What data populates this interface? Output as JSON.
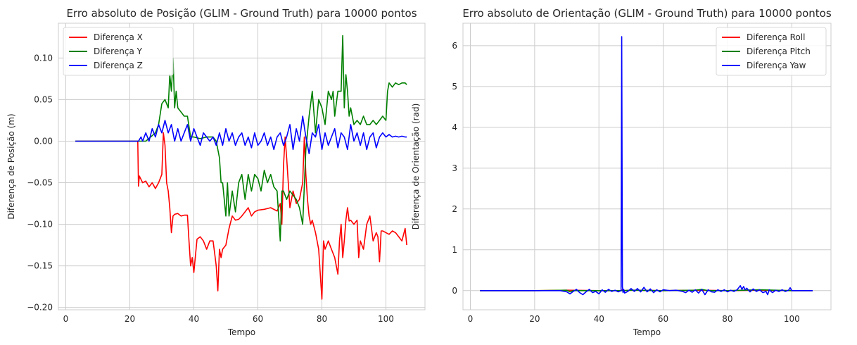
{
  "chart_data": [
    {
      "type": "line",
      "title": "Erro absoluto de Posição (GLIM - Ground Truth) para 10000 pontos",
      "xlabel": "Tempo",
      "ylabel": "Diferença de Posição (m)",
      "xlim": [
        -2.3,
        112.2
      ],
      "ylim": [
        -0.2028,
        0.1418
      ],
      "xticks": [
        0,
        20,
        40,
        60,
        80,
        100
      ],
      "xtick_labels": [
        "0",
        "20",
        "40",
        "60",
        "80",
        "100"
      ],
      "yticks": [
        -0.2,
        -0.15,
        -0.1,
        -0.05,
        0.0,
        0.05,
        0.1
      ],
      "ytick_labels": [
        "−0.20",
        "−0.15",
        "−0.10",
        "−0.05",
        "0.00",
        "0.05",
        "0.10"
      ],
      "grid": true,
      "legend_position": "top-left",
      "series": [
        {
          "name": "Diferença X",
          "color": "#ff0000",
          "x": [
            3,
            10,
            22.5,
            22.7,
            23,
            24,
            25,
            26,
            27,
            28,
            29,
            30,
            30.5,
            31,
            31.5,
            32,
            32.5,
            33,
            33.5,
            34,
            35,
            36,
            37,
            38,
            38.5,
            39,
            39.5,
            40,
            41,
            42,
            43,
            44,
            45,
            46,
            46.5,
            47,
            47.5,
            48,
            48.5,
            49,
            50,
            51,
            52,
            53,
            54,
            55,
            56,
            57,
            58,
            59,
            60,
            62,
            64,
            66,
            67,
            67.5,
            68,
            68.5,
            69,
            70,
            71,
            72,
            73,
            73.5,
            74,
            74.5,
            75,
            75.5,
            76,
            76.5,
            77,
            78,
            79,
            79.5,
            80,
            80.5,
            81,
            82,
            83,
            84,
            85,
            85.5,
            86,
            86.5,
            87,
            87.5,
            88,
            88.5,
            89,
            90,
            91,
            91.5,
            92,
            93,
            94,
            95,
            96,
            97,
            97.5,
            98,
            98.5,
            99,
            100,
            101,
            102,
            103,
            104,
            105,
            106,
            106.5
          ],
          "y": [
            0,
            0,
            0,
            -0.054,
            -0.042,
            -0.05,
            -0.048,
            -0.055,
            -0.05,
            -0.057,
            -0.05,
            -0.04,
            0.01,
            -0.005,
            -0.05,
            -0.06,
            -0.08,
            -0.11,
            -0.09,
            -0.088,
            -0.087,
            -0.09,
            -0.089,
            -0.089,
            -0.12,
            -0.15,
            -0.14,
            -0.158,
            -0.118,
            -0.115,
            -0.12,
            -0.13,
            -0.12,
            -0.12,
            -0.135,
            -0.15,
            -0.18,
            -0.13,
            -0.14,
            -0.13,
            -0.125,
            -0.105,
            -0.09,
            -0.095,
            -0.094,
            -0.09,
            -0.085,
            -0.08,
            -0.09,
            -0.085,
            -0.083,
            -0.082,
            -0.08,
            -0.084,
            -0.075,
            -0.1,
            -0.03,
            0.005,
            -0.02,
            -0.08,
            -0.06,
            -0.075,
            -0.07,
            -0.06,
            -0.05,
            0.005,
            -0.04,
            -0.07,
            -0.09,
            -0.1,
            -0.095,
            -0.11,
            -0.13,
            -0.16,
            -0.19,
            -0.12,
            -0.13,
            -0.12,
            -0.13,
            -0.14,
            -0.16,
            -0.12,
            -0.1,
            -0.14,
            -0.12,
            -0.095,
            -0.08,
            -0.096,
            -0.095,
            -0.1,
            -0.095,
            -0.14,
            -0.12,
            -0.13,
            -0.1,
            -0.09,
            -0.12,
            -0.11,
            -0.115,
            -0.145,
            -0.108,
            -0.108,
            -0.11,
            -0.112,
            -0.108,
            -0.11,
            -0.115,
            -0.12,
            -0.105,
            -0.125
          ]
        },
        {
          "name": "Diferença Y",
          "color": "#008000",
          "x": [
            3,
            10,
            20,
            25,
            28,
            29,
            30,
            31,
            32,
            32.5,
            33,
            33.5,
            34,
            34.5,
            35,
            36,
            37,
            38,
            39,
            40,
            42,
            44,
            46,
            47,
            48,
            48.5,
            49,
            50,
            50.5,
            51,
            52,
            53,
            54,
            55,
            56,
            57,
            58,
            59,
            60,
            61,
            62,
            63,
            64,
            65,
            66,
            67,
            67.5,
            68,
            69,
            70,
            71,
            72,
            73,
            74,
            75,
            76,
            77,
            78,
            79,
            80,
            81,
            82,
            83,
            83.5,
            84,
            85,
            86,
            86.5,
            87,
            87.5,
            88,
            88.5,
            89,
            90,
            91,
            92,
            93,
            94,
            95,
            96,
            97,
            98,
            99,
            100,
            100.5,
            101,
            102,
            103,
            104,
            105,
            106,
            106.5
          ],
          "y": [
            0,
            0,
            0,
            0,
            0.01,
            0.02,
            0.045,
            0.05,
            0.04,
            0.08,
            0.06,
            0.1,
            0.04,
            0.06,
            0.04,
            0.035,
            0.03,
            0.03,
            0.005,
            0.005,
            0.003,
            0.005,
            0.005,
            0,
            -0.02,
            -0.05,
            -0.05,
            -0.09,
            -0.05,
            -0.09,
            -0.06,
            -0.085,
            -0.05,
            -0.04,
            -0.07,
            -0.04,
            -0.06,
            -0.04,
            -0.045,
            -0.06,
            -0.035,
            -0.05,
            -0.04,
            -0.055,
            -0.06,
            -0.12,
            -0.06,
            -0.06,
            -0.07,
            -0.06,
            -0.065,
            -0.07,
            -0.08,
            -0.1,
            -0.01,
            0.03,
            0.06,
            0.01,
            0.05,
            0.04,
            0.02,
            0.06,
            0.05,
            0.06,
            0.03,
            0.06,
            0.06,
            0.127,
            0.04,
            0.08,
            0.06,
            0.03,
            0.04,
            0.02,
            0.025,
            0.02,
            0.03,
            0.02,
            0.02,
            0.025,
            0.02,
            0.025,
            0.03,
            0.025,
            0.06,
            0.07,
            0.065,
            0.07,
            0.068,
            0.07,
            0.07,
            0.068
          ]
        },
        {
          "name": "Diferença Z",
          "color": "#0000ff",
          "x": [
            3,
            10,
            20,
            22.7,
            23.5,
            24,
            25,
            26,
            27,
            28,
            29,
            30,
            31,
            32,
            33,
            34,
            35,
            36,
            37,
            38,
            39,
            40,
            41,
            42,
            43,
            44,
            45,
            46,
            47,
            48,
            49,
            50,
            51,
            52,
            53,
            54,
            55,
            56,
            57,
            58,
            59,
            60,
            61,
            62,
            63,
            64,
            65,
            66,
            67,
            68,
            69,
            70,
            71,
            72,
            73,
            74,
            75,
            76,
            77,
            78,
            79,
            80,
            81,
            82,
            83,
            84,
            85,
            86,
            87,
            88,
            89,
            90,
            91,
            92,
            93,
            94,
            95,
            96,
            97,
            98,
            99,
            100,
            101,
            102,
            103,
            104,
            105,
            106,
            106.5
          ],
          "y": [
            0,
            0,
            0,
            0,
            0.005,
            0,
            0.01,
            0,
            0.015,
            0.005,
            0.02,
            0.01,
            0.025,
            0.01,
            0.02,
            0,
            0.015,
            0,
            0.01,
            0.02,
            0,
            0.015,
            0.005,
            -0.005,
            0.01,
            0.005,
            0,
            0.005,
            -0.005,
            0.01,
            -0.005,
            0.015,
            0,
            0.01,
            -0.005,
            0.005,
            0.01,
            -0.005,
            0.005,
            -0.008,
            0.01,
            -0.005,
            0,
            0.01,
            -0.005,
            0.005,
            -0.01,
            0.005,
            0.01,
            -0.005,
            0.005,
            0.02,
            -0.01,
            0.015,
            0,
            0.03,
            0.005,
            -0.015,
            0.01,
            0.005,
            0.02,
            -0.01,
            0.01,
            -0.005,
            0.005,
            0.015,
            -0.008,
            0.01,
            0.005,
            -0.01,
            0.02,
            0,
            0.01,
            -0.005,
            0.01,
            -0.01,
            0.005,
            0.01,
            -0.008,
            0.005,
            0.01,
            0.005,
            0.008,
            0.005,
            0.006,
            0.005,
            0.006,
            0.005,
            0.005
          ]
        }
      ]
    },
    {
      "type": "line",
      "title": "Erro absoluto de Orientação (GLIM - Ground Truth) para 10000 pontos",
      "xlabel": "Tempo",
      "ylabel": "Diferença de Orientação (rad)",
      "xlim": [
        -2.3,
        112.2
      ],
      "ylim": [
        -0.47,
        6.55
      ],
      "xticks": [
        0,
        20,
        40,
        60,
        80,
        100
      ],
      "xtick_labels": [
        "0",
        "20",
        "40",
        "60",
        "80",
        "100"
      ],
      "yticks": [
        0,
        1,
        2,
        3,
        4,
        5,
        6
      ],
      "ytick_labels": [
        "0",
        "1",
        "2",
        "3",
        "4",
        "5",
        "6"
      ],
      "grid": true,
      "legend_position": "top-right",
      "series": [
        {
          "name": "Diferença Roll",
          "color": "#ff0000",
          "x": [
            3,
            20,
            30,
            40,
            47,
            47.3,
            47.6,
            50,
            60,
            70,
            80,
            90,
            100,
            106.5
          ],
          "y": [
            0,
            0,
            0.01,
            0,
            0,
            0.02,
            0,
            0.01,
            0,
            0.01,
            0,
            0.01,
            0,
            0
          ]
        },
        {
          "name": "Diferença Pitch",
          "color": "#008000",
          "x": [
            3,
            20,
            30,
            31,
            32,
            40,
            47,
            50,
            60,
            70,
            72,
            74,
            80,
            90,
            100,
            106.5
          ],
          "y": [
            0,
            0,
            0.01,
            -0.03,
            0,
            0,
            0,
            0.01,
            0,
            0.01,
            0.03,
            0,
            0,
            0.02,
            0,
            0
          ]
        },
        {
          "name": "Diferença Yaw",
          "color": "#0000ff",
          "x": [
            3,
            20,
            28,
            30,
            31,
            32,
            33,
            34,
            35,
            36,
            37,
            38,
            39,
            40,
            41,
            42,
            43,
            44,
            45,
            46,
            46.9,
            47.1,
            47.3,
            47.5,
            47.7,
            48,
            49,
            50,
            51,
            52,
            53,
            54,
            55,
            56,
            57,
            58,
            59,
            60,
            62,
            64,
            66,
            67,
            68,
            69,
            70,
            71,
            72,
            73,
            74,
            75,
            76,
            77,
            78,
            79,
            80,
            81,
            82,
            83,
            84,
            84.5,
            85,
            85.5,
            86,
            87,
            88,
            89,
            90,
            91,
            92,
            92.5,
            93,
            94,
            95,
            96,
            97,
            98,
            99,
            99.5,
            100,
            101,
            102,
            103,
            104,
            105,
            106.5
          ],
          "y": [
            0,
            0,
            0,
            -0.03,
            -0.08,
            -0.02,
            0.03,
            -0.05,
            -0.1,
            -0.03,
            0.03,
            -0.05,
            -0.02,
            -0.08,
            0.02,
            -0.04,
            0.03,
            -0.02,
            0.01,
            -0.03,
            0,
            6.22,
            0.1,
            -0.05,
            0.03,
            -0.06,
            -0.02,
            0.05,
            -0.02,
            0.05,
            -0.03,
            0.08,
            -0.03,
            0.04,
            -0.05,
            0.02,
            -0.03,
            0.02,
            0,
            0.01,
            -0.02,
            -0.05,
            0.01,
            -0.04,
            0.02,
            -0.06,
            0.03,
            -0.1,
            0.02,
            -0.03,
            -0.04,
            0.02,
            -0.02,
            0.02,
            -0.03,
            0.01,
            -0.02,
            0.02,
            0.12,
            0.03,
            0.1,
            0.02,
            0.06,
            -0.03,
            0.04,
            -0.02,
            0.02,
            -0.05,
            -0.02,
            -0.1,
            0.02,
            -0.05,
            0.01,
            -0.02,
            0.02,
            -0.02,
            0.01,
            0.07,
            0,
            0,
            0,
            0,
            0,
            0,
            0
          ]
        }
      ]
    }
  ]
}
